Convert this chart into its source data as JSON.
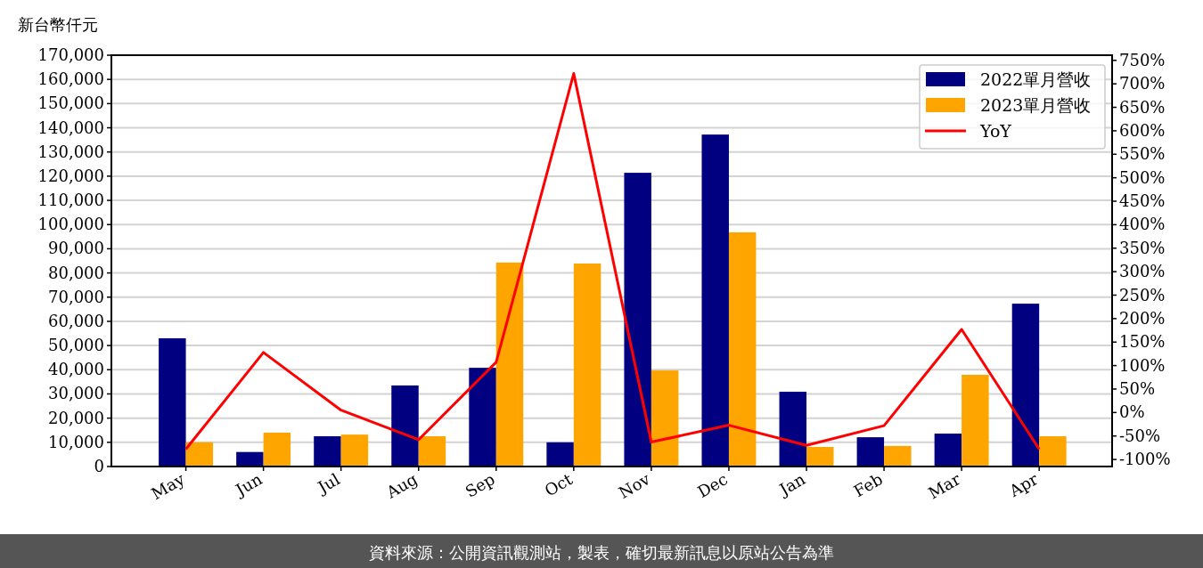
{
  "chart_data": {
    "type": "bar",
    "ylabel": "新台幣仟元",
    "categories": [
      "May",
      "Jun",
      "Jul",
      "Aug",
      "Sep",
      "Oct",
      "Nov",
      "Dec",
      "Jan",
      "Feb",
      "Mar",
      "Apr"
    ],
    "series": [
      {
        "name": "2022單月營收",
        "color": "#000080",
        "values": [
          53000,
          6000,
          12500,
          33500,
          40800,
          10000,
          121400,
          137200,
          30900,
          12100,
          13600,
          67300
        ]
      },
      {
        "name": "2023單月營收",
        "color": "#ffa500",
        "values": [
          10000,
          14000,
          13200,
          12500,
          84300,
          83900,
          39700,
          96800,
          8100,
          8500,
          37900,
          12500
        ]
      },
      {
        "name": "YoY",
        "type": "line",
        "axis": "y2",
        "color": "#ff0000",
        "values": [
          -78,
          128,
          5,
          -58,
          107,
          722,
          -63,
          -27,
          -70,
          -28,
          177,
          -78
        ]
      }
    ],
    "ylim": [
      0,
      170000
    ],
    "yticks": [
      {
        "value": 0,
        "label": "0"
      },
      {
        "value": 10000,
        "label": "10,000"
      },
      {
        "value": 20000,
        "label": "20,000"
      },
      {
        "value": 30000,
        "label": "30,000"
      },
      {
        "value": 40000,
        "label": "40,000"
      },
      {
        "value": 50000,
        "label": "50,000"
      },
      {
        "value": 60000,
        "label": "60,000"
      },
      {
        "value": 70000,
        "label": "70,000"
      },
      {
        "value": 80000,
        "label": "80,000"
      },
      {
        "value": 90000,
        "label": "90,000"
      },
      {
        "value": 100000,
        "label": "100,000"
      },
      {
        "value": 110000,
        "label": "110,000"
      },
      {
        "value": 120000,
        "label": "120,000"
      },
      {
        "value": 130000,
        "label": "130,000"
      },
      {
        "value": 140000,
        "label": "140,000"
      },
      {
        "value": 150000,
        "label": "150,000"
      },
      {
        "value": 160000,
        "label": "160,000"
      },
      {
        "value": 170000,
        "label": "170,000"
      }
    ],
    "y2lim": [
      -115,
      761
    ],
    "y2ticks": [
      {
        "value": -100,
        "label": "-100%"
      },
      {
        "value": -50,
        "label": "-50%"
      },
      {
        "value": 0,
        "label": "0%"
      },
      {
        "value": 50,
        "label": "50%"
      },
      {
        "value": 100,
        "label": "100%"
      },
      {
        "value": 150,
        "label": "150%"
      },
      {
        "value": 200,
        "label": "200%"
      },
      {
        "value": 250,
        "label": "250%"
      },
      {
        "value": 300,
        "label": "300%"
      },
      {
        "value": 350,
        "label": "350%"
      },
      {
        "value": 400,
        "label": "400%"
      },
      {
        "value": 450,
        "label": "450%"
      },
      {
        "value": 500,
        "label": "500%"
      },
      {
        "value": 550,
        "label": "550%"
      },
      {
        "value": 600,
        "label": "600%"
      },
      {
        "value": 650,
        "label": "650%"
      },
      {
        "value": 700,
        "label": "700%"
      },
      {
        "value": 750,
        "label": "750%"
      }
    ],
    "grid": "y",
    "legend": "top right",
    "annotations": [
      "資料來源：公開資訊觀測站，製表，確切最新訊息以原站公告為準"
    ]
  }
}
